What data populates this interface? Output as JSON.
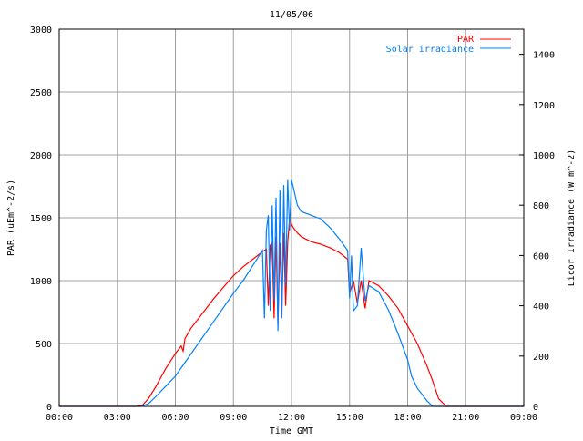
{
  "chart_data": {
    "type": "line",
    "title": "11/05/06",
    "xlabel": "Time GMT",
    "ylabel": "PAR (uEm^-2/s)",
    "y2label": "Licor Irradiance (W m^-2)",
    "xlim": [
      0,
      24
    ],
    "ylim": [
      0,
      3000
    ],
    "y2lim": [
      0,
      1500
    ],
    "x_ticks": [
      0,
      3,
      6,
      9,
      12,
      15,
      18,
      21,
      24
    ],
    "x_tick_labels": [
      "00:00",
      "03:00",
      "06:00",
      "09:00",
      "12:00",
      "15:00",
      "18:00",
      "21:00",
      "00:00"
    ],
    "y_ticks": [
      0,
      500,
      1000,
      1500,
      2000,
      2500,
      3000
    ],
    "y_tick_labels": [
      "0",
      "500",
      "1000",
      "1500",
      "2000",
      "2500",
      "3000"
    ],
    "y2_ticks": [
      0,
      200,
      400,
      600,
      800,
      1000,
      1200,
      1400
    ],
    "y2_tick_labels": [
      "0",
      "200",
      "400",
      "600",
      "800",
      "1000",
      "1200",
      "1400"
    ],
    "grid": true,
    "legend_position": "top-right",
    "series": [
      {
        "name": "PAR",
        "axis": "left",
        "color": "#ff0000",
        "points": [
          [
            0,
            0
          ],
          [
            4,
            0
          ],
          [
            4.3,
            10
          ],
          [
            4.6,
            60
          ],
          [
            5,
            160
          ],
          [
            5.5,
            300
          ],
          [
            6,
            420
          ],
          [
            6.3,
            480
          ],
          [
            6.4,
            440
          ],
          [
            6.5,
            540
          ],
          [
            6.8,
            620
          ],
          [
            7,
            660
          ],
          [
            7.5,
            760
          ],
          [
            8,
            860
          ],
          [
            8.5,
            950
          ],
          [
            9,
            1040
          ],
          [
            9.5,
            1110
          ],
          [
            10,
            1170
          ],
          [
            10.5,
            1230
          ],
          [
            10.7,
            1250
          ],
          [
            10.8,
            800
          ],
          [
            10.9,
            1280
          ],
          [
            11,
            1300
          ],
          [
            11.1,
            700
          ],
          [
            11.2,
            1350
          ],
          [
            11.3,
            650
          ],
          [
            11.4,
            1300
          ],
          [
            11.5,
            750
          ],
          [
            11.6,
            1380
          ],
          [
            11.7,
            800
          ],
          [
            11.8,
            1300
          ],
          [
            11.9,
            1500
          ],
          [
            12,
            1450
          ],
          [
            12.1,
            1420
          ],
          [
            12.3,
            1380
          ],
          [
            12.5,
            1350
          ],
          [
            13,
            1310
          ],
          [
            13.5,
            1290
          ],
          [
            14,
            1260
          ],
          [
            14.5,
            1220
          ],
          [
            14.9,
            1170
          ],
          [
            15,
            900
          ],
          [
            15.2,
            1000
          ],
          [
            15.4,
            820
          ],
          [
            15.6,
            1000
          ],
          [
            15.8,
            780
          ],
          [
            16,
            1000
          ],
          [
            16.5,
            960
          ],
          [
            17,
            880
          ],
          [
            17.5,
            780
          ],
          [
            18,
            640
          ],
          [
            18.5,
            500
          ],
          [
            19,
            320
          ],
          [
            19.3,
            200
          ],
          [
            19.6,
            60
          ],
          [
            20,
            0
          ],
          [
            24,
            0
          ]
        ]
      },
      {
        "name": "Solar irradiance",
        "axis": "right",
        "color": "#0080ff",
        "points": [
          [
            0,
            0
          ],
          [
            4.2,
            0
          ],
          [
            4.6,
            10
          ],
          [
            5,
            40
          ],
          [
            5.5,
            80
          ],
          [
            6,
            120
          ],
          [
            7,
            230
          ],
          [
            8,
            340
          ],
          [
            9,
            450
          ],
          [
            9.5,
            500
          ],
          [
            10,
            560
          ],
          [
            10.5,
            620
          ],
          [
            10.6,
            350
          ],
          [
            10.7,
            700
          ],
          [
            10.8,
            760
          ],
          [
            10.9,
            380
          ],
          [
            11,
            800
          ],
          [
            11.1,
            420
          ],
          [
            11.2,
            830
          ],
          [
            11.3,
            300
          ],
          [
            11.4,
            860
          ],
          [
            11.5,
            350
          ],
          [
            11.6,
            880
          ],
          [
            11.7,
            480
          ],
          [
            11.8,
            900
          ],
          [
            11.9,
            700
          ],
          [
            12,
            900
          ],
          [
            12.1,
            870
          ],
          [
            12.3,
            800
          ],
          [
            12.5,
            775
          ],
          [
            13,
            760
          ],
          [
            13.5,
            746
          ],
          [
            14,
            710
          ],
          [
            14.5,
            663
          ],
          [
            14.9,
            620
          ],
          [
            15,
            430
          ],
          [
            15.1,
            600
          ],
          [
            15.2,
            380
          ],
          [
            15.4,
            400
          ],
          [
            15.6,
            630
          ],
          [
            15.8,
            420
          ],
          [
            16,
            480
          ],
          [
            16.5,
            456
          ],
          [
            17,
            384
          ],
          [
            17.5,
            290
          ],
          [
            18,
            185
          ],
          [
            18.2,
            120
          ],
          [
            18.5,
            72
          ],
          [
            19,
            22
          ],
          [
            19.3,
            0
          ],
          [
            24,
            0
          ]
        ]
      }
    ]
  }
}
